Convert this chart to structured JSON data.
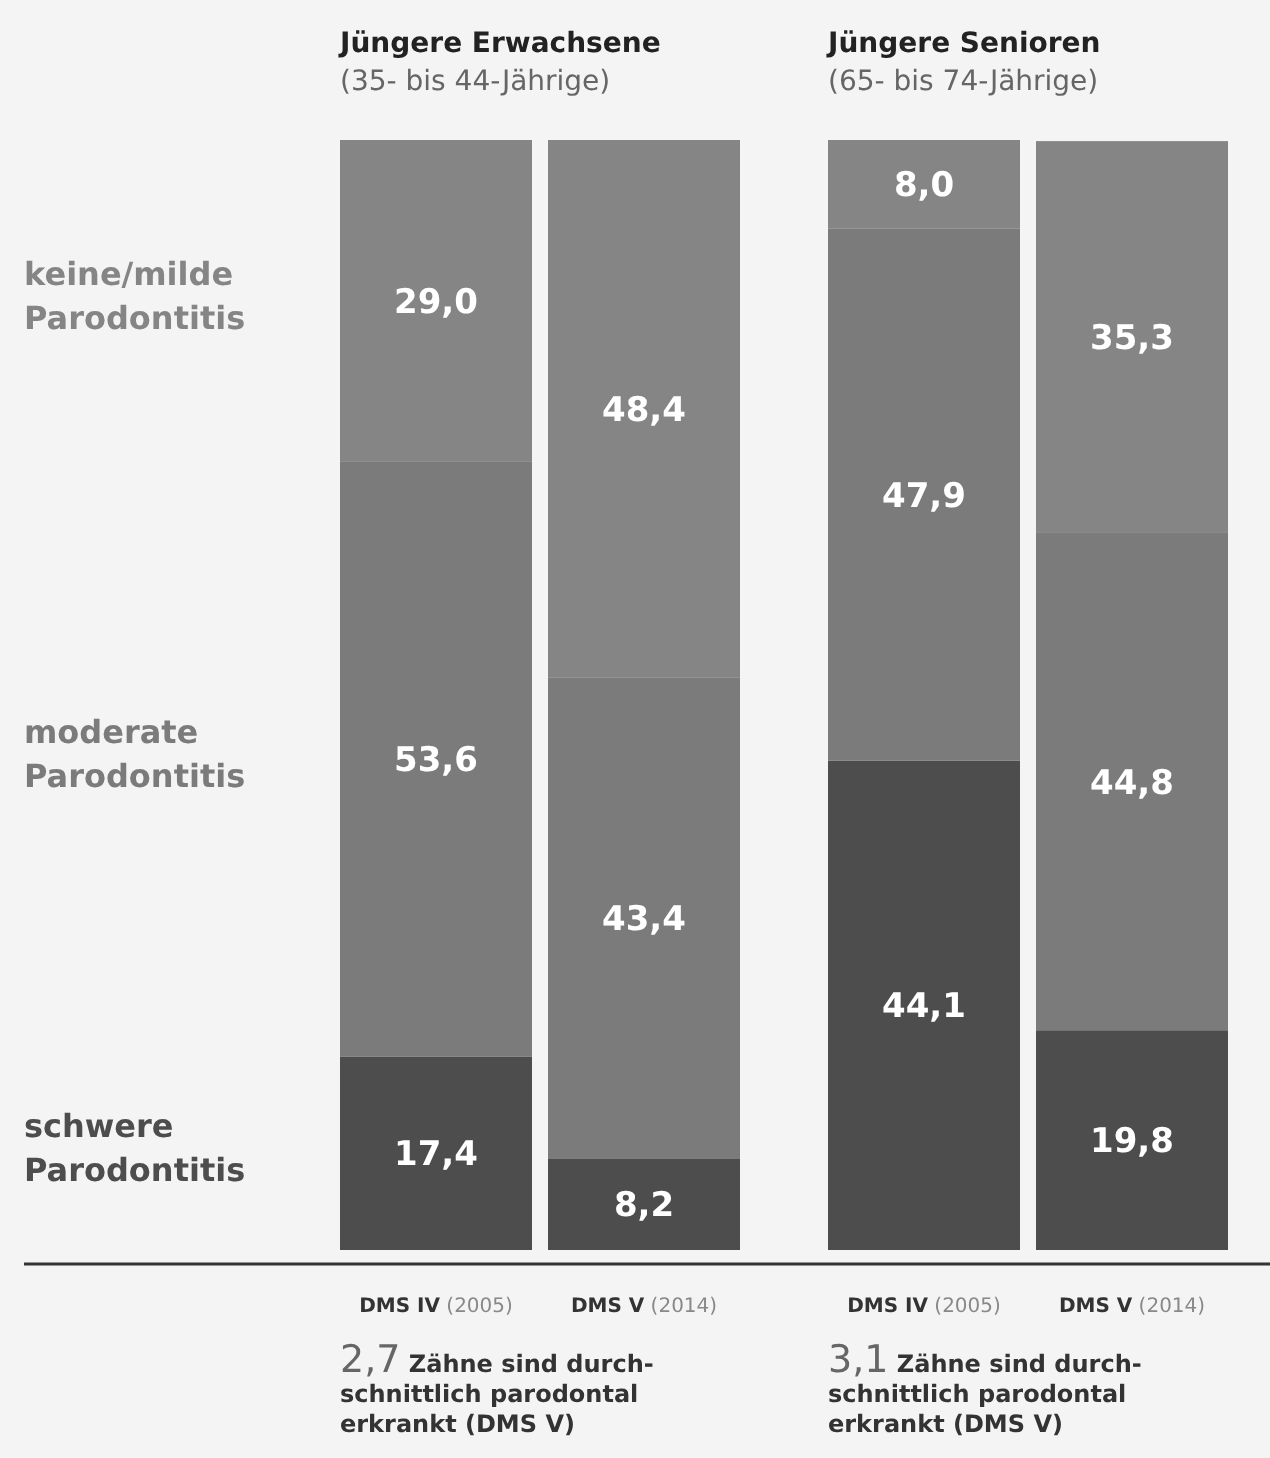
{
  "chart_data": {
    "type": "bar",
    "stacked": true,
    "categories": [
      "DMS IV (2005)",
      "DMS V (2014)",
      "DMS IV (2005)",
      "DMS V (2014)"
    ],
    "series": [
      {
        "name": "schwere Parodontitis",
        "color": "#4d4d4d",
        "values": [
          17.4,
          8.2,
          44.1,
          19.8
        ],
        "value_labels": [
          "17,4",
          "8,2",
          "44,1",
          "19,8"
        ]
      },
      {
        "name": "moderate Parodontitis",
        "color": "#7b7b7b",
        "values": [
          53.6,
          43.4,
          47.9,
          44.8
        ],
        "value_labels": [
          "53,6",
          "43,4",
          "47,9",
          "44,8"
        ]
      },
      {
        "name": "keine/milde Parodontitis",
        "color": "#858585",
        "values": [
          29.0,
          48.4,
          8.0,
          35.3
        ],
        "value_labels": [
          "29,0",
          "48,4",
          "8,0",
          "35,3"
        ]
      }
    ],
    "ylim": [
      0,
      100
    ],
    "legend": "left",
    "annotations": [
      "Jüngere Erwachsene\n(35- bis 44-Jährige)",
      "Jüngere Senioren\n(65- bis 74-Jährige)",
      "2,7 Zähne sind durch-\nschnittlich parodontal\nerkrankt (DMS V)",
      "3,1 Zähne sind durch-\nschnittlich parodontal\nerkrankt (DMS V)"
    ]
  }
}
